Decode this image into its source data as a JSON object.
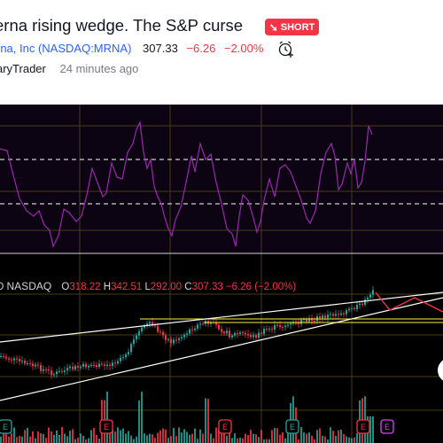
{
  "header": {
    "title": "erna rising wedge. The S&P curse",
    "badge": {
      "label": "SHORT",
      "icon": "arrow-down-right-icon",
      "color": "#f23645"
    },
    "symbol": {
      "company": "rna, Inc (NASDAQ:MRNA)",
      "price": "307.33",
      "change": "−6.26",
      "change_pct": "−2.00%"
    },
    "alert_icon": "alarm-clock-plus-icon",
    "author": "aryTrader",
    "time_ago": "24 minutes ago"
  },
  "chart": {
    "legend": {
      "symbol": "D",
      "exchange": "NASDAQ",
      "open_label": "O",
      "open": "318.22",
      "high_label": "H",
      "high": "342.51",
      "low_label": "L",
      "low": "292.00",
      "close_label": "C",
      "close": "307.33",
      "change": "−6.26 (−2.00%)"
    },
    "event_markers": [
      {
        "label": "E",
        "color": "#26a69a"
      },
      {
        "label": "E",
        "color": "#f23645"
      },
      {
        "label": "E",
        "color": "#f23645"
      },
      {
        "label": "E",
        "color": "#26a69a"
      },
      {
        "label": "E",
        "color": "#f23645"
      },
      {
        "label": "E",
        "color": "#e040fb"
      }
    ],
    "colors": {
      "background": "#000000",
      "oscillator_pane": "#0c0412",
      "oscillator_line": "#9c27b0",
      "up_candle": "#26a69a",
      "down_candle": "#f23645",
      "trendline": "#ffffff",
      "support": "#ffeb3b",
      "projection": "#f23645",
      "grid": "#5d4a1a"
    }
  }
}
